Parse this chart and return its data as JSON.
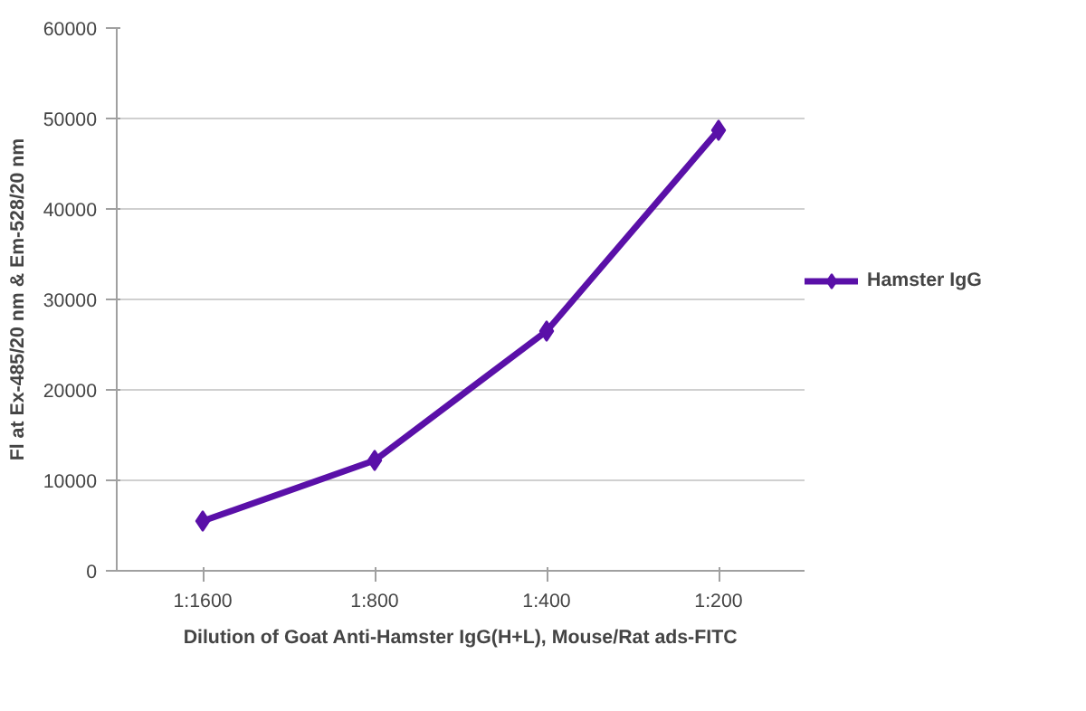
{
  "chart_data": {
    "type": "line",
    "xlabel": "Dilution of Goat Anti-Hamster IgG(H+L), Mouse/Rat ads-FITC",
    "ylabel": "Fl at Ex-485/20 nm & Em-528/20 nm",
    "categories": [
      "1:1600",
      "1:800",
      "1:400",
      "1:200"
    ],
    "series": [
      {
        "name": "Hamster IgG",
        "color": "#5a10a8",
        "values": [
          5500,
          12200,
          26500,
          48700
        ]
      }
    ],
    "ylim": [
      0,
      60000
    ],
    "yticks": [
      0,
      10000,
      20000,
      30000,
      40000,
      50000,
      60000
    ],
    "grid": "y",
    "legend": "right",
    "marker": "diamond",
    "line_style": "solid"
  }
}
